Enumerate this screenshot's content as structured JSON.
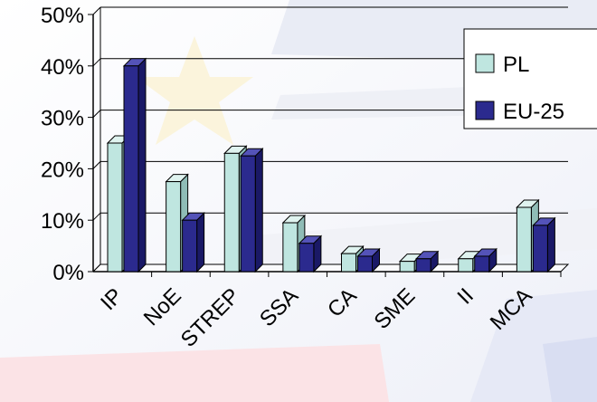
{
  "chart_data": {
    "type": "bar",
    "categories": [
      "IP",
      "NoE",
      "STREP",
      "SSA",
      "CA",
      "SME",
      "II",
      "MCA"
    ],
    "series": [
      {
        "name": "PL",
        "values": [
          25,
          17.5,
          23,
          9.5,
          3.5,
          2,
          2.5,
          12.5
        ],
        "color": "#bfe6e0"
      },
      {
        "name": "EU-25",
        "values": [
          40,
          10,
          22.5,
          5.5,
          3,
          2.5,
          3,
          9
        ],
        "color": "#2b2a8e"
      }
    ],
    "yticks": [
      "0%",
      "10%",
      "20%",
      "30%",
      "40%",
      "50%"
    ],
    "ylim": [
      0,
      50
    ],
    "grid": true,
    "legend": "top-right",
    "title": "",
    "xlabel": "",
    "ylabel": ""
  }
}
